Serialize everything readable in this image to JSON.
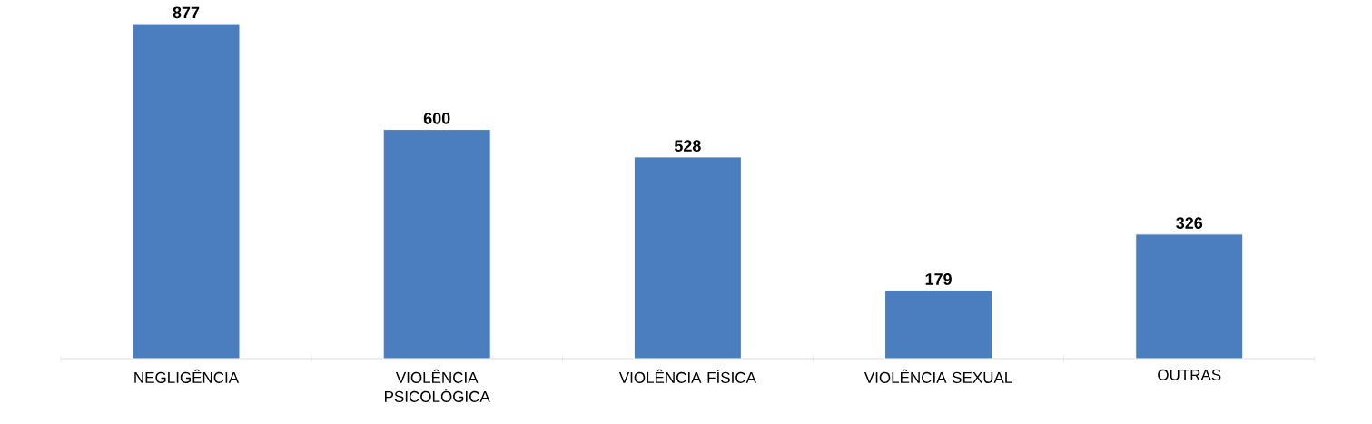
{
  "chart_data": {
    "type": "bar",
    "categories": [
      "NEGLIGÊNCIA",
      "VIOLÊNCIA PSICOLÓGICA",
      "VIOLÊNCIA FÍSICA",
      "VIOLÊNCIA SEXUAL",
      "OUTRAS"
    ],
    "values": [
      877,
      600,
      528,
      179,
      326
    ],
    "color": "#4a7ebf",
    "tick_labels": "x",
    "data_labels": true
  }
}
